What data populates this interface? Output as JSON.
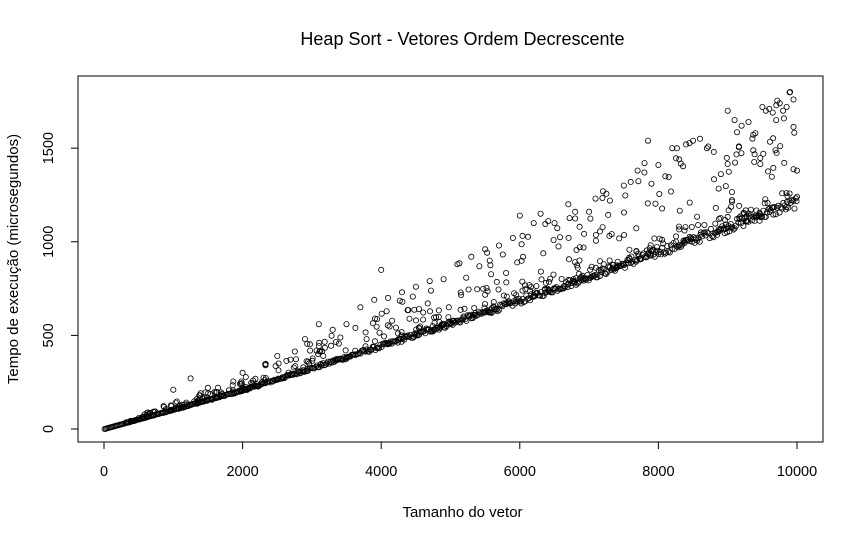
{
  "chart_data": {
    "type": "scatter",
    "title": "Heap Sort - Vetores Ordem Decrescente",
    "xlabel": "Tamanho do vetor",
    "ylabel": "Tempo de execução (microsegundos)",
    "xlim": [
      0,
      10000
    ],
    "ylim": [
      0,
      1800
    ],
    "xticks": [
      0,
      2000,
      4000,
      6000,
      8000,
      10000
    ],
    "yticks": [
      0,
      500,
      1000,
      1500
    ],
    "grid": false,
    "legend": "none",
    "marker": "open-circle",
    "point_color": "#000000",
    "series": [
      {
        "name": "",
        "main_trend": {
          "x": [
            10,
            2000,
            4000,
            6000,
            8000,
            10000
          ],
          "y": [
            0,
            205,
            440,
            680,
            940,
            1205
          ]
        },
        "outliers": {
          "x": [
            1000,
            1250,
            1500,
            2000,
            2500,
            2900,
            3100,
            3300,
            3500,
            3700,
            3900,
            4000,
            4100,
            4300,
            4500,
            4700,
            4900,
            5100,
            5300,
            5500,
            5700,
            5900,
            6000,
            6200,
            6300,
            6500,
            6700,
            6800,
            7000,
            7200,
            7300,
            7500,
            7600,
            7700,
            7800,
            7850,
            7900,
            8000,
            8100,
            8200,
            8300,
            8400,
            8500,
            8600,
            8700,
            8800,
            9000,
            9100,
            9200,
            9300,
            9400,
            9500,
            9550,
            9600,
            9650,
            9700,
            9750,
            9800,
            9850,
            9900,
            9950,
            10000
          ],
          "y": [
            210,
            270,
            220,
            300,
            390,
            480,
            560,
            530,
            560,
            650,
            690,
            850,
            700,
            730,
            760,
            790,
            800,
            880,
            920,
            960,
            980,
            1020,
            1140,
            1100,
            1150,
            1100,
            1200,
            1160,
            1160,
            1270,
            1220,
            1300,
            1320,
            1380,
            1420,
            1540,
            1310,
            1410,
            1350,
            1500,
            1440,
            1520,
            1540,
            1550,
            1500,
            1480,
            1700,
            1650,
            1620,
            1640,
            1580,
            1720,
            1700,
            1710,
            1690,
            1650,
            1740,
            1700,
            1720,
            1800,
            1760,
            1380
          ]
        }
      }
    ]
  }
}
